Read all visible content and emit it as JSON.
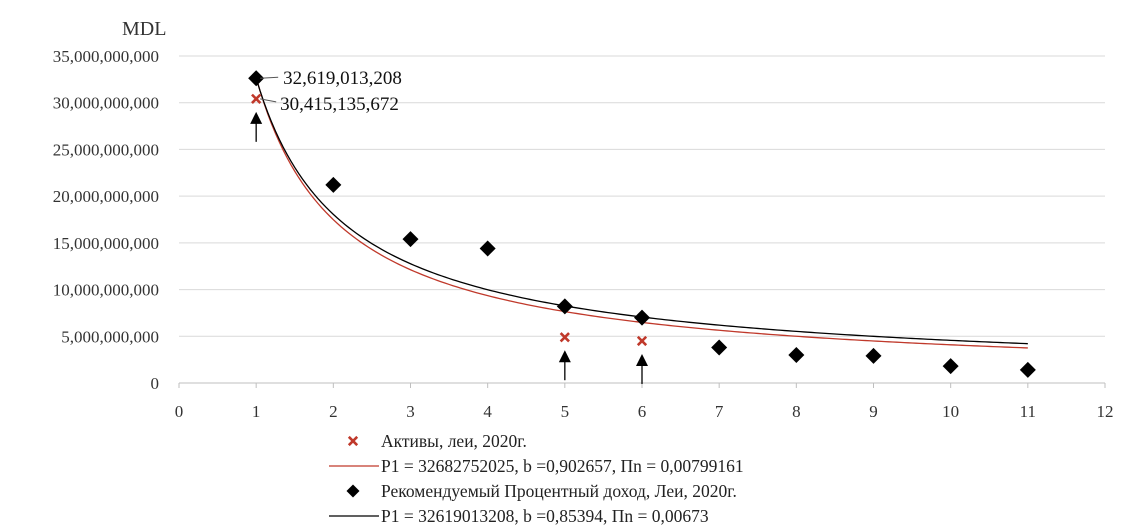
{
  "chart_data": {
    "type": "scatter",
    "unit_label": "MDL",
    "xlim": [
      0,
      12
    ],
    "ylim": [
      0,
      35000000000
    ],
    "x_ticks": [
      0,
      1,
      2,
      3,
      4,
      5,
      6,
      7,
      8,
      9,
      10,
      11,
      12
    ],
    "y_ticks": [
      "0",
      "5,000,000,000",
      "10,000,000,000",
      "15,000,000,000",
      "20,000,000,000",
      "25,000,000,000",
      "30,000,000,000",
      "35,000,000,000"
    ],
    "grid": true,
    "legend_position": "bottom",
    "series": [
      {
        "name": "Активы, леи, 2020г.",
        "kind": "points",
        "marker": "x-cross",
        "color": "#c0392b",
        "x": [
          1,
          5,
          6
        ],
        "y": [
          30415135672,
          4900000000,
          4500000000
        ]
      },
      {
        "name": "P1 = 32682752025,  b =0,902657,  Пn = 0,00799161",
        "kind": "trendline",
        "color": "#c0392b",
        "p1": 32682752025,
        "b": 0.902657,
        "x_range": [
          1,
          11
        ]
      },
      {
        "name": "Рекомендуемый Процентный доход, Леи, 2020г.",
        "kind": "points",
        "marker": "diamond",
        "color": "#000000",
        "x": [
          1,
          2,
          3,
          4,
          5,
          6,
          7,
          8,
          9,
          10,
          11
        ],
        "y": [
          32619013208,
          21200000000,
          15400000000,
          14400000000,
          8200000000,
          7000000000,
          3800000000,
          3000000000,
          2900000000,
          1800000000,
          1400000000
        ]
      },
      {
        "name": "P1 = 32619013208,  b =0,85394,  Пn = 0,00673",
        "kind": "trendline",
        "color": "#000000",
        "p1": 32619013208,
        "b": 0.85394,
        "x_range": [
          1,
          11
        ]
      }
    ],
    "annotations": [
      {
        "text": "32,619,013,208",
        "x": 1,
        "y": 32619013208
      },
      {
        "text": "30,415,135,672",
        "x": 1,
        "y": 30415135672
      }
    ],
    "arrows_at": [
      {
        "x": 1,
        "y": 30415135672
      },
      {
        "x": 5,
        "y": 4900000000
      },
      {
        "x": 6,
        "y": 4500000000
      }
    ]
  }
}
